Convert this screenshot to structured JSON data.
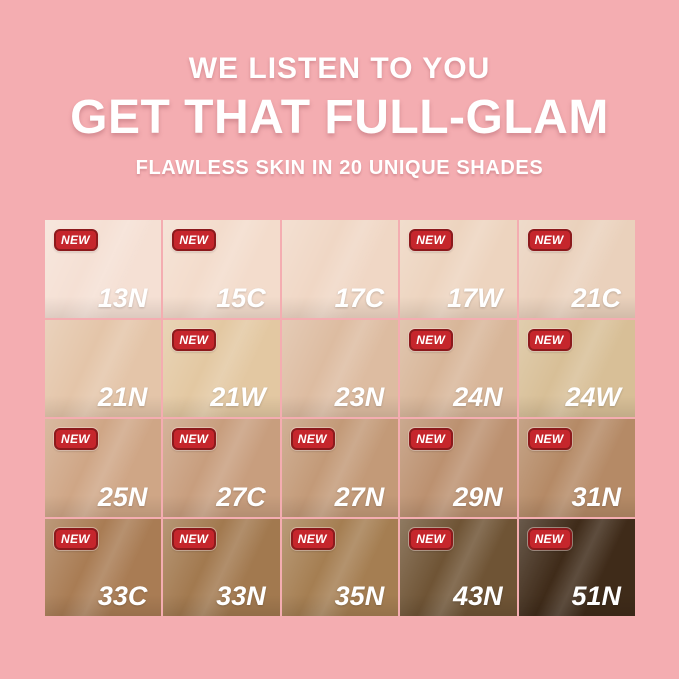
{
  "page": {
    "background_color": "#F4ADB1"
  },
  "header": {
    "line1": "WE LISTEN TO YOU",
    "line2": "GET THAT FULL-GLAM",
    "line3": "FLAWLESS SKIN IN 20 UNIQUE SHADES",
    "text_color": "#FFFFFF"
  },
  "badge": {
    "label": "NEW",
    "bg_color": "#C5262C",
    "border_color": "#8C1A1C",
    "text_color": "#FFFFFF"
  },
  "shade_count": 20,
  "shades": [
    {
      "code": "13N",
      "color": "#F5E0D4",
      "new": true
    },
    {
      "code": "15C",
      "color": "#F3DCCC",
      "new": true
    },
    {
      "code": "17C",
      "color": "#F0D7C5",
      "new": false
    },
    {
      "code": "17W",
      "color": "#EDD4BF",
      "new": true
    },
    {
      "code": "21C",
      "color": "#EAD1BC",
      "new": true
    },
    {
      "code": "21N",
      "color": "#E4C5A9",
      "new": false
    },
    {
      "code": "21W",
      "color": "#E3C8A2",
      "new": true
    },
    {
      "code": "23N",
      "color": "#DDBCA1",
      "new": false
    },
    {
      "code": "24N",
      "color": "#D8B699",
      "new": true
    },
    {
      "code": "24W",
      "color": "#D8BF97",
      "new": true
    },
    {
      "code": "25N",
      "color": "#CFA686",
      "new": true
    },
    {
      "code": "27C",
      "color": "#C89E7E",
      "new": true
    },
    {
      "code": "27N",
      "color": "#C39A78",
      "new": true
    },
    {
      "code": "29N",
      "color": "#BC9170",
      "new": true
    },
    {
      "code": "31N",
      "color": "#B58A66",
      "new": true
    },
    {
      "code": "33C",
      "color": "#A97C54",
      "new": true
    },
    {
      "code": "33N",
      "color": "#A2794F",
      "new": true
    },
    {
      "code": "35N",
      "color": "#A57E52",
      "new": true
    },
    {
      "code": "43N",
      "color": "#6F5435",
      "new": true
    },
    {
      "code": "51N",
      "color": "#3F2B19",
      "new": true
    }
  ]
}
